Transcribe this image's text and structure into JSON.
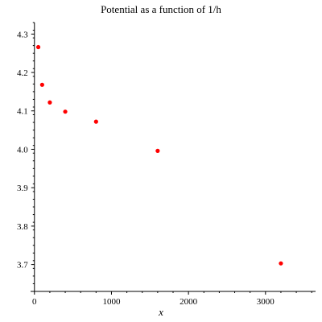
{
  "chart_data": {
    "type": "scatter",
    "title": "Potential as a function of 1/h",
    "xlabel": "x",
    "ylabel": "",
    "xlim": [
      -50,
      3650
    ],
    "ylim": [
      3.63,
      4.33
    ],
    "x_ticks": [
      0,
      1000,
      2000,
      3000
    ],
    "x_tick_labels": [
      "0",
      "1000",
      "2000",
      "3000"
    ],
    "y_ticks": [
      3.7,
      3.8,
      3.9,
      4.0,
      4.1,
      4.2,
      4.3
    ],
    "y_tick_labels": [
      "3.7",
      "3.8",
      "3.9",
      "4.0",
      "4.1",
      "4.2",
      "4.3"
    ],
    "grid": false,
    "legend": "none",
    "series": [
      {
        "color": "#ff0000",
        "points": [
          {
            "x": 50,
            "y": 4.266
          },
          {
            "x": 100,
            "y": 4.168
          },
          {
            "x": 200,
            "y": 4.122
          },
          {
            "x": 400,
            "y": 4.098
          },
          {
            "x": 800,
            "y": 4.072
          },
          {
            "x": 1600,
            "y": 3.996
          },
          {
            "x": 3200,
            "y": 3.703
          }
        ]
      }
    ]
  }
}
